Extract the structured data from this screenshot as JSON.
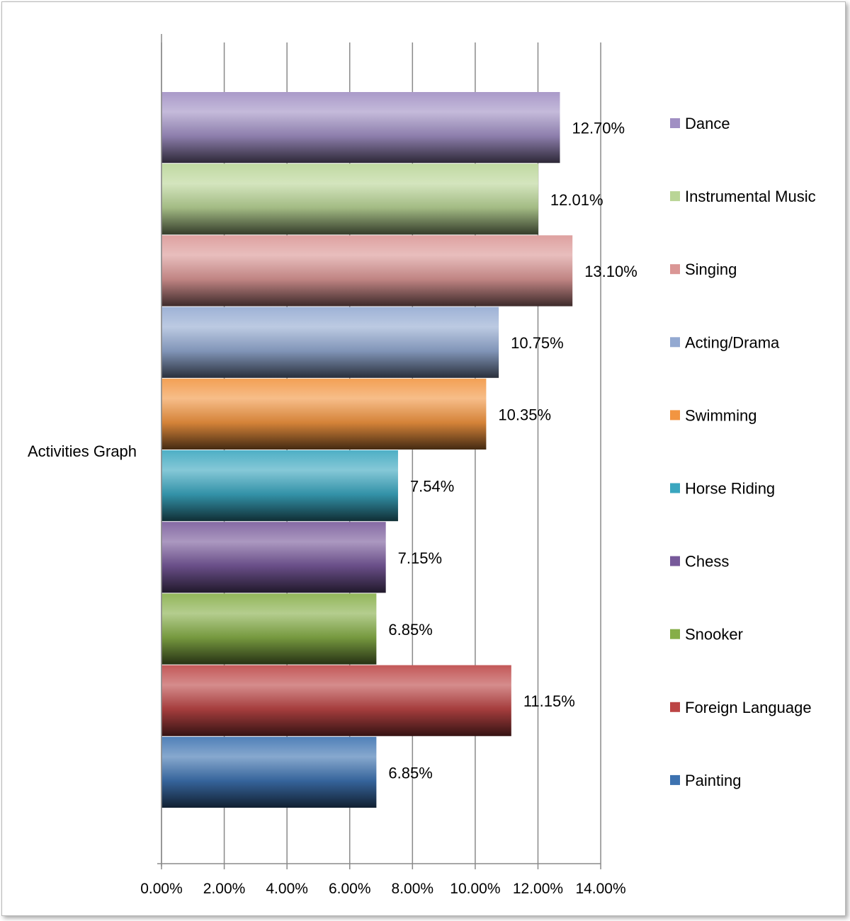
{
  "chart_data": {
    "type": "bar",
    "orientation": "horizontal",
    "category_label": "Activities Graph",
    "series": [
      {
        "name": "Dance",
        "value": 12.7,
        "label": "12.70%",
        "color": "#A08FC3"
      },
      {
        "name": "Instrumental Music",
        "value": 12.01,
        "label": "12.01%",
        "color": "#B9D596"
      },
      {
        "name": "Singing",
        "value": 13.1,
        "label": "13.10%",
        "color": "#DA9695"
      },
      {
        "name": "Acting/Drama",
        "value": 10.75,
        "label": "10.75%",
        "color": "#93A9D1"
      },
      {
        "name": "Swimming",
        "value": 10.35,
        "label": "10.35%",
        "color": "#F29541"
      },
      {
        "name": "Horse Riding",
        "value": 7.54,
        "label": "7.54%",
        "color": "#3AA6BF"
      },
      {
        "name": "Chess",
        "value": 7.15,
        "label": "7.15%",
        "color": "#77599A"
      },
      {
        "name": "Snooker",
        "value": 6.85,
        "label": "6.85%",
        "color": "#86AE48"
      },
      {
        "name": "Foreign Language",
        "value": 11.15,
        "label": "11.15%",
        "color": "#BC4545"
      },
      {
        "name": "Painting",
        "value": 6.85,
        "label": "6.85%",
        "color": "#3D72B0"
      }
    ],
    "xlim": [
      0,
      14
    ],
    "xticks": [
      "0.00%",
      "2.00%",
      "4.00%",
      "6.00%",
      "8.00%",
      "10.00%",
      "12.00%",
      "14.00%"
    ],
    "grid": true,
    "legend": "right"
  }
}
